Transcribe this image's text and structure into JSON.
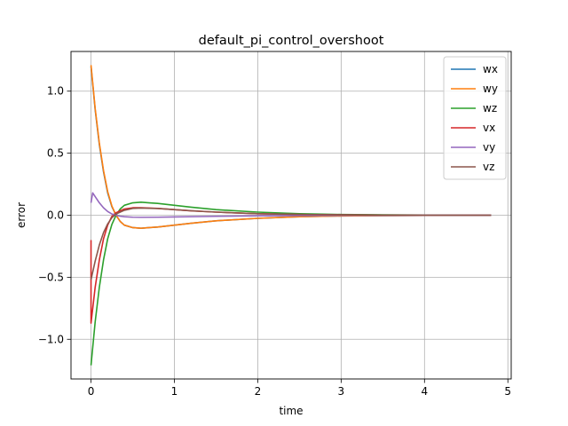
{
  "chart_data": {
    "type": "line",
    "title": "default_pi_control_overshoot",
    "xlabel": "time",
    "ylabel": "error",
    "xlim": [
      -0.24,
      5.04
    ],
    "ylim": [
      -1.32,
      1.32
    ],
    "xticks": [
      0,
      1,
      2,
      3,
      4,
      5
    ],
    "xtick_labels": [
      "0",
      "1",
      "2",
      "3",
      "4",
      "5"
    ],
    "yticks": [
      -1.0,
      -0.5,
      0.0,
      0.5,
      1.0
    ],
    "ytick_labels": [
      "−1.0",
      "−0.5",
      "0.0",
      "0.5",
      "1.0"
    ],
    "grid": true,
    "legend_position": "top-right",
    "series": [
      {
        "name": "wx",
        "color": "#1f77b4",
        "x": [
          0,
          0.05,
          0.1,
          0.15,
          0.2,
          0.25,
          0.3,
          0.35,
          0.4,
          0.5,
          0.6,
          0.7,
          0.8,
          1.0,
          1.2,
          1.5,
          2.0,
          2.5,
          3.0,
          3.5,
          4.0,
          4.5,
          4.8
        ],
        "y": [
          1.2,
          0.85,
          0.57,
          0.35,
          0.18,
          0.07,
          0.0,
          -0.05,
          -0.08,
          -0.1,
          -0.105,
          -0.1,
          -0.095,
          -0.08,
          -0.065,
          -0.045,
          -0.025,
          -0.012,
          -0.006,
          -0.003,
          -0.001,
          0.0,
          0.0
        ]
      },
      {
        "name": "wy",
        "color": "#ff7f0e",
        "x": [
          0,
          0.05,
          0.1,
          0.15,
          0.2,
          0.25,
          0.3,
          0.35,
          0.4,
          0.5,
          0.6,
          0.7,
          0.8,
          1.0,
          1.2,
          1.5,
          2.0,
          2.5,
          3.0,
          3.5,
          4.0,
          4.5,
          4.8
        ],
        "y": [
          1.21,
          0.86,
          0.58,
          0.36,
          0.19,
          0.075,
          0.0,
          -0.05,
          -0.08,
          -0.1,
          -0.105,
          -0.1,
          -0.095,
          -0.08,
          -0.065,
          -0.045,
          -0.025,
          -0.012,
          -0.006,
          -0.003,
          -0.001,
          0.0,
          0.0
        ]
      },
      {
        "name": "wz",
        "color": "#2ca02c",
        "x": [
          0,
          0.05,
          0.1,
          0.15,
          0.2,
          0.25,
          0.3,
          0.35,
          0.4,
          0.5,
          0.6,
          0.7,
          0.8,
          1.0,
          1.2,
          1.5,
          2.0,
          2.5,
          3.0,
          3.5,
          4.0,
          4.5,
          4.8
        ],
        "y": [
          -1.21,
          -0.86,
          -0.58,
          -0.36,
          -0.19,
          -0.075,
          0.0,
          0.05,
          0.08,
          0.1,
          0.105,
          0.1,
          0.095,
          0.08,
          0.065,
          0.045,
          0.025,
          0.012,
          0.006,
          0.003,
          0.001,
          0.0,
          0.0
        ]
      },
      {
        "name": "vx",
        "color": "#d62728",
        "x": [
          0,
          0.0,
          0.05,
          0.1,
          0.15,
          0.2,
          0.25,
          0.3,
          0.4,
          0.5,
          0.6,
          0.8,
          1.0,
          1.2,
          1.5,
          2.0,
          2.5,
          3.0,
          3.5,
          4.0,
          4.5,
          4.8
        ],
        "y": [
          -0.2,
          -0.87,
          -0.58,
          -0.36,
          -0.19,
          -0.08,
          -0.01,
          0.02,
          0.05,
          0.06,
          0.06,
          0.055,
          0.045,
          0.035,
          0.025,
          0.012,
          0.006,
          0.003,
          0.001,
          0.0,
          0.0,
          0.0
        ]
      },
      {
        "name": "vy",
        "color": "#9467bd",
        "x": [
          0,
          0.02,
          0.05,
          0.1,
          0.15,
          0.2,
          0.25,
          0.3,
          0.35,
          0.4,
          0.5,
          0.6,
          0.8,
          1.0,
          1.5,
          2.0,
          2.5,
          3.0,
          3.5,
          4.0,
          4.5,
          4.8
        ],
        "y": [
          0.1,
          0.18,
          0.15,
          0.1,
          0.06,
          0.03,
          0.01,
          0.0,
          -0.008,
          -0.012,
          -0.016,
          -0.017,
          -0.016,
          -0.014,
          -0.009,
          -0.005,
          -0.003,
          -0.001,
          -0.0005,
          0.0,
          0.0,
          0.0
        ]
      },
      {
        "name": "vz",
        "color": "#8c564b",
        "x": [
          0,
          0.05,
          0.1,
          0.15,
          0.2,
          0.25,
          0.3,
          0.4,
          0.5,
          0.6,
          0.8,
          1.0,
          1.2,
          1.5,
          2.0,
          2.5,
          3.0,
          3.5,
          4.0,
          4.5,
          4.8
        ],
        "y": [
          -0.52,
          -0.37,
          -0.24,
          -0.14,
          -0.07,
          -0.02,
          0.01,
          0.04,
          0.055,
          0.058,
          0.054,
          0.045,
          0.036,
          0.025,
          0.012,
          0.006,
          0.003,
          0.001,
          0.0,
          0.0,
          0.0
        ]
      }
    ]
  }
}
